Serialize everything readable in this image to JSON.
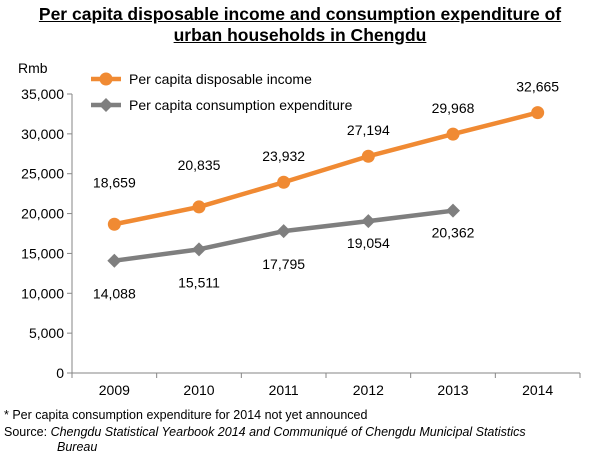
{
  "title_line1": "Per capita disposable income and consumption expenditure of",
  "title_line2": "urban households in Chengdu",
  "chart_data": {
    "type": "line",
    "categories": [
      "2009",
      "2010",
      "2011",
      "2012",
      "2013",
      "2014"
    ],
    "ylabel": "Rmb",
    "ylim": [
      0,
      35000
    ],
    "yticks": [
      "0",
      "5,000",
      "10,000",
      "15,000",
      "20,000",
      "25,000",
      "30,000",
      "35,000"
    ],
    "series": [
      {
        "name": "Per capita disposable income",
        "color": "#F08A33",
        "marker": "circle",
        "values": [
          18659,
          20835,
          23932,
          27194,
          29968,
          32665
        ],
        "labels": [
          "18,659",
          "20,835",
          "23,932",
          "27,194",
          "29,968",
          "32,665"
        ]
      },
      {
        "name": "Per capita consumption expenditure",
        "color": "#7F7F7F",
        "marker": "diamond",
        "values": [
          14088,
          15511,
          17795,
          19054,
          20362,
          null
        ],
        "labels": [
          "14,088",
          "15,511",
          "17,795",
          "19,054",
          "20,362",
          null
        ]
      }
    ],
    "grid": false,
    "legend": "top-left"
  },
  "note": "* Per capita consumption expenditure for 2014 not yet announced",
  "source_label": "Source: ",
  "source_text": "Chengdu Statistical Yearbook 2014 and Communiqué of Chengdu Municipal Statistics",
  "source_text2": "Bureau"
}
